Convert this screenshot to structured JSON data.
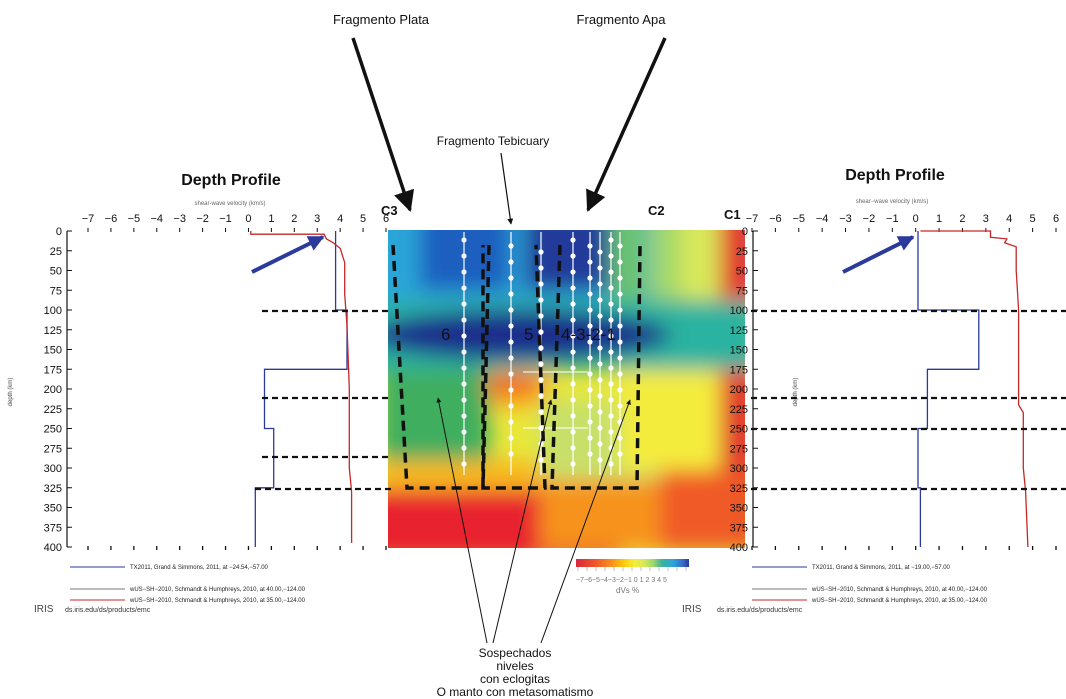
{
  "annotations": {
    "top_left": "Fragmento Plata",
    "top_right": "Fragmento Apa",
    "middle": "Fragmento Tebicuary",
    "bottom_lines": [
      "Sospechados",
      "niveles",
      "con eclogitas",
      "O manto con metasomatismo"
    ]
  },
  "section_markers": [
    "C3",
    "C2",
    "C1"
  ],
  "fragment_numbers": [
    "6",
    "5",
    "4-3-2-1"
  ],
  "colorbar": {
    "ticks": "−7−6−5−4−3−2−1 0 1 2 3 4 5",
    "label": "dVs %",
    "colors": [
      "#d7263d",
      "#f05a28",
      "#f7931e",
      "#fdd20a",
      "#f4ec3c",
      "#d8e85a",
      "#a2d86a",
      "#6cc46e",
      "#3fb29c",
      "#2aa5d8",
      "#3b6fc9",
      "#243a9a"
    ]
  },
  "left_panel": {
    "title": "Depth Profile",
    "x_axis_label": "shear-wave velocity (km/s)",
    "y_axis_label": "depth (km)",
    "x_ticks": [
      "−7",
      "−6",
      "−5",
      "−4",
      "−3",
      "−2",
      "−1",
      "0",
      "1",
      "2",
      "3",
      "4",
      "5",
      "6"
    ],
    "y_ticks": [
      "0",
      "25",
      "50",
      "75",
      "100",
      "125",
      "150",
      "175",
      "200",
      "225",
      "250",
      "275",
      "300",
      "325",
      "350",
      "375",
      "400"
    ],
    "legend": [
      {
        "text": "TX2011, Grand & Simmons, 2011, at −24.54,−57.00",
        "color": "#2b3a9b"
      },
      {
        "text": "wUS−SH−2010, Schmandt & Humphreys, 2010, at 40.00,−124.00",
        "color": "#777777"
      },
      {
        "text": "wUS−SH−2010, Schmandt & Humphreys, 2010, at 35.00,−124.00",
        "color": "#c62828"
      }
    ],
    "iris_logo": "IRIS",
    "url": "ds.iris.edu/ds/products/emc"
  },
  "right_panel": {
    "title": "Depth Profile",
    "x_axis_label": "shear−wave velocity (km/s)",
    "y_axis_label": "depth (km)",
    "x_ticks": [
      "−7",
      "−6",
      "−5",
      "−4",
      "−3",
      "−2",
      "−1",
      "0",
      "1",
      "2",
      "3",
      "4",
      "5",
      "6"
    ],
    "y_ticks": [
      "0",
      "25",
      "50",
      "75",
      "100",
      "125",
      "150",
      "175",
      "200",
      "225",
      "250",
      "275",
      "300",
      "325",
      "350",
      "375",
      "400"
    ],
    "legend": [
      {
        "text": "TX2011, Grand & Simmons, 2011, at −19.00,−57.00",
        "color": "#2b3a9b"
      },
      {
        "text": "wUS−SH−2010, Schmandt & Humphreys, 2010, at 40.00,−124.00",
        "color": "#777777"
      },
      {
        "text": "wUS−SH−2010, Schmandt & Humphreys, 2010, at 35.00,−124.00",
        "color": "#c62828"
      }
    ],
    "iris_logo": "IRIS",
    "url": "ds.iris.edu/ds/products/emc"
  },
  "chart_data": [
    {
      "type": "line",
      "x_label": "shear-wave velocity (km/s)",
      "y_label": "depth (km)",
      "xlim": [
        -7,
        6
      ],
      "ylim": [
        0,
        400
      ],
      "y_inverted": true,
      "series": [
        {
          "name": "TX2011, Grand & Simmons, 2011, at −24.54,−57.00",
          "color": "#2b3a9b",
          "steps": [
            [
              3.8,
              0
            ],
            [
              3.8,
              100
            ],
            [
              4.3,
              100
            ],
            [
              4.3,
              175
            ],
            [
              0.7,
              175
            ],
            [
              0.7,
              250
            ],
            [
              1.1,
              250
            ],
            [
              1.1,
              325
            ],
            [
              0.3,
              325
            ],
            [
              0.3,
              400
            ]
          ]
        },
        {
          "name": "wUS−SH−2010, Schmandt & Humphreys, 2010, at 35.00,−124.00",
          "color": "#c62828",
          "steps": [
            [
              0.1,
              0
            ],
            [
              0.1,
              4
            ],
            [
              3.3,
              4
            ],
            [
              3.4,
              10
            ],
            [
              3.7,
              15
            ],
            [
              4.0,
              22
            ],
            [
              4.2,
              40
            ],
            [
              4.2,
              80
            ],
            [
              4.3,
              120
            ],
            [
              4.4,
              200
            ],
            [
              4.4,
              225
            ],
            [
              4.4,
              300
            ],
            [
              4.5,
              330
            ],
            [
              4.5,
              395
            ]
          ]
        }
      ],
      "horizontal_dashed_lines": [
        100,
        175,
        250,
        325
      ]
    },
    {
      "type": "line",
      "x_label": "shear−wave velocity (km/s)",
      "y_label": "depth (km)",
      "xlim": [
        -7,
        6
      ],
      "ylim": [
        0,
        400
      ],
      "y_inverted": true,
      "series": [
        {
          "name": "TX2011, Grand & Simmons, 2011, at −19.00,−57.00",
          "color": "#2b3a9b",
          "steps": [
            [
              0.1,
              0
            ],
            [
              0.1,
              100
            ],
            [
              2.7,
              100
            ],
            [
              2.7,
              175
            ],
            [
              0.5,
              175
            ],
            [
              0.5,
              250
            ],
            [
              0.1,
              250
            ],
            [
              0.1,
              325
            ],
            [
              0.2,
              325
            ],
            [
              0.2,
              400
            ]
          ]
        },
        {
          "name": "wUS−SH−2010, Schmandt & Humphreys, 2010, at 35.00,−124.00",
          "color": "#c62828",
          "steps": [
            [
              0.2,
              0
            ],
            [
              3.2,
              0
            ],
            [
              3.2,
              8
            ],
            [
              3.9,
              10
            ],
            [
              3.8,
              15
            ],
            [
              4.3,
              20
            ],
            [
              4.3,
              50
            ],
            [
              4.4,
              100
            ],
            [
              4.4,
              220
            ],
            [
              4.6,
              230
            ],
            [
              4.6,
              300
            ],
            [
              4.7,
              330
            ],
            [
              4.8,
              400
            ]
          ]
        }
      ],
      "horizontal_dashed_lines": [
        100,
        175,
        250,
        325
      ]
    }
  ]
}
